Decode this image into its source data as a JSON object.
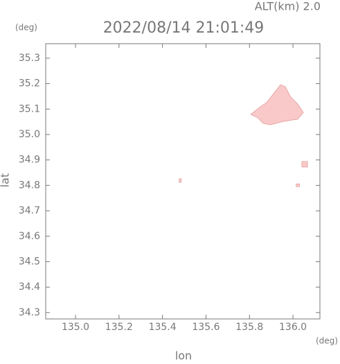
{
  "chart_data": {
    "type": "map",
    "title": "2022/08/14 21:01:49",
    "subtitle": "ALT(km) 2.0",
    "x_label": "lon",
    "y_label": "lat",
    "x_unit": "(deg)",
    "y_unit": "(deg)",
    "xlim": [
      134.863,
      136.124
    ],
    "ylim": [
      34.275,
      35.357
    ],
    "xticks": [
      {
        "value": 135,
        "label": "135.0"
      },
      135.2,
      135.4,
      135.6,
      135.8,
      {
        "value": 136,
        "label": "136.0"
      }
    ],
    "yticks": [
      34.3,
      34.4,
      34.5,
      34.6,
      34.7,
      34.8,
      34.9,
      {
        "value": 35,
        "label": "35.0"
      },
      35.1,
      35.2,
      35.3
    ],
    "color": "#f9c9c9",
    "areas": [
      {
        "x": [
          135.806,
          135.847,
          135.879,
          135.911,
          135.943,
          135.965,
          135.99,
          136.022,
          136.048,
          136.022,
          135.959,
          135.895,
          135.863,
          135.838
        ],
        "y": [
          35.079,
          35.107,
          35.126,
          35.161,
          35.196,
          35.188,
          35.147,
          35.12,
          35.087,
          35.06,
          35.052,
          35.038,
          35.044,
          35.066
        ]
      },
      {
        "x": [
          136.041,
          136.067,
          136.067,
          136.041
        ],
        "y": [
          34.894,
          34.894,
          34.872,
          34.872
        ]
      },
      {
        "x": [
          136.015,
          136.03,
          136.03,
          136.015
        ],
        "y": [
          34.806,
          34.806,
          34.795,
          34.795
        ]
      },
      {
        "x": [
          135.477,
          135.486,
          135.486,
          135.477
        ],
        "y": [
          34.826,
          34.826,
          34.812,
          34.812
        ]
      }
    ]
  }
}
